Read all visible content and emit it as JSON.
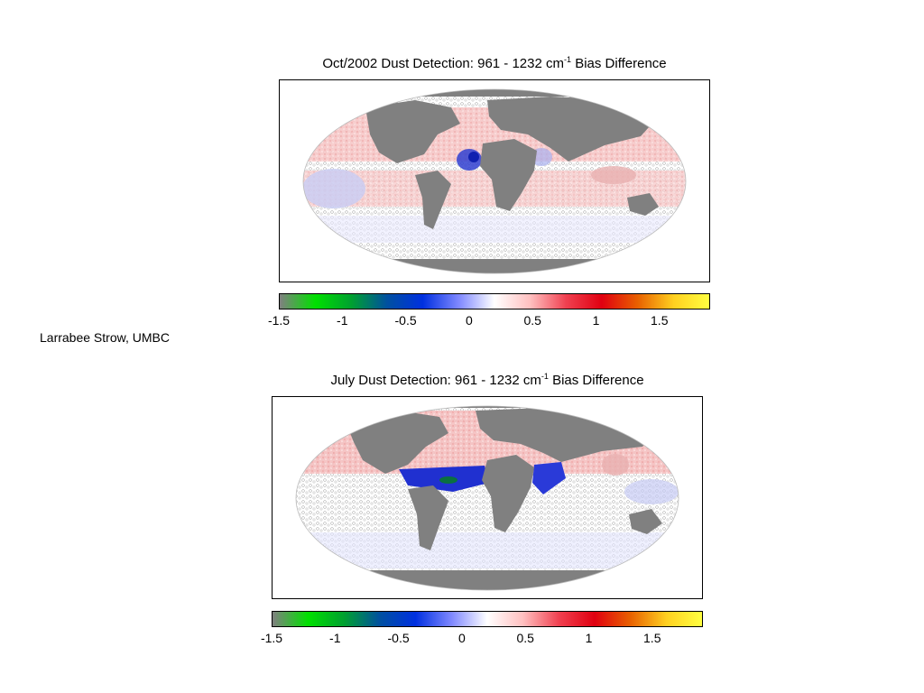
{
  "credit": "Larrabee Strow, UMBC",
  "colormap": {
    "stops": [
      "#808080",
      "#00e000",
      "#00a030",
      "#0050a0",
      "#0030e0",
      "#7f88ff",
      "#ffffff",
      "#ffc0c0",
      "#f04050",
      "#e00010",
      "#e86000",
      "#ffd020",
      "#ffff40"
    ],
    "min": -1.5,
    "max": 1.9,
    "tick_labels": [
      "-1.5",
      "-1",
      "-0.5",
      "0",
      "0.5",
      "1",
      "1.5"
    ]
  },
  "maps": [
    {
      "title_prefix": "Oct/2002 Dust Detection: 961 - 1232 cm",
      "title_sup": "-1",
      "title_suffix": " Bias Difference",
      "land_color": "#808080",
      "dust_region": "Western Africa / tropical Atlantic (moderate)"
    },
    {
      "title_prefix": "July Dust Detection: 961 - 1232 cm",
      "title_sup": "-1",
      "title_suffix": " Bias Difference",
      "land_color": "#808080",
      "dust_region": "Tropical Atlantic and Arabian Sea (strong)"
    }
  ]
}
